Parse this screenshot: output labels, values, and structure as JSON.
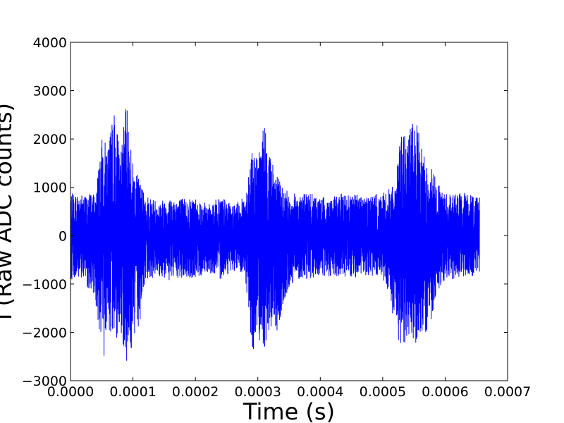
{
  "chart_data": {
    "type": "line",
    "title": "",
    "xlabel": "Time (s)",
    "ylabel": "I (Raw ADC counts)",
    "xlim": [
      0,
      0.0007
    ],
    "ylim": [
      -3000,
      4000
    ],
    "x_ticks": [
      0,
      0.0001,
      0.0002,
      0.0003,
      0.0004,
      0.0005,
      0.0006,
      0.0007
    ],
    "x_tick_labels": [
      "0.0000",
      "0.0001",
      "0.0002",
      "0.0003",
      "0.0004",
      "0.0005",
      "0.0006",
      "0.0007"
    ],
    "y_ticks": [
      -3000,
      -2000,
      -1000,
      0,
      1000,
      2000,
      3000,
      4000
    ],
    "y_tick_labels": [
      "−3000",
      "−2000",
      "−1000",
      "0",
      "1000",
      "2000",
      "3000",
      "4000"
    ],
    "grid": false,
    "legend": "none",
    "series": [
      {
        "color": "#0000ff",
        "x": [
          0,
          2e-05,
          4e-05,
          5e-05,
          6e-05,
          7e-05,
          8e-05,
          9e-05,
          0.0001,
          0.00011,
          0.00012,
          0.00014,
          0.00016,
          0.00018,
          0.0002,
          0.00022,
          0.00024,
          0.00026,
          0.00028,
          0.00029,
          0.0003,
          0.00031,
          0.00032,
          0.00033,
          0.00034,
          0.00035,
          0.00036,
          0.00038,
          0.0004,
          0.00042,
          0.00044,
          0.00046,
          0.00048,
          0.0005,
          0.00052,
          0.00053,
          0.00054,
          0.00055,
          0.00056,
          0.00057,
          0.00058,
          0.00059,
          0.0006,
          0.00062,
          0.00064,
          0.000655
        ],
        "upper": [
          880,
          860,
          900,
          2000,
          1900,
          2600,
          1750,
          2750,
          1500,
          1150,
          850,
          720,
          800,
          780,
          800,
          650,
          830,
          620,
          820,
          1900,
          1550,
          2400,
          1650,
          1300,
          1000,
          900,
          880,
          900,
          800,
          800,
          900,
          870,
          850,
          880,
          1050,
          2200,
          2000,
          2550,
          2000,
          1500,
          1400,
          1050,
          880,
          900,
          880,
          850
        ],
        "lower": [
          -900,
          -950,
          -1300,
          -2850,
          -1900,
          -2200,
          -2000,
          -2600,
          -2300,
          -1900,
          -900,
          -850,
          -950,
          -900,
          -900,
          -750,
          -900,
          -720,
          -880,
          -2450,
          -2100,
          -2350,
          -1900,
          -2050,
          -1600,
          -1100,
          -900,
          -900,
          -850,
          -900,
          -850,
          -880,
          -850,
          -900,
          -1900,
          -2500,
          -2000,
          -2300,
          -2000,
          -2100,
          -1700,
          -1100,
          -900,
          -900,
          -850,
          -800
        ]
      }
    ]
  }
}
